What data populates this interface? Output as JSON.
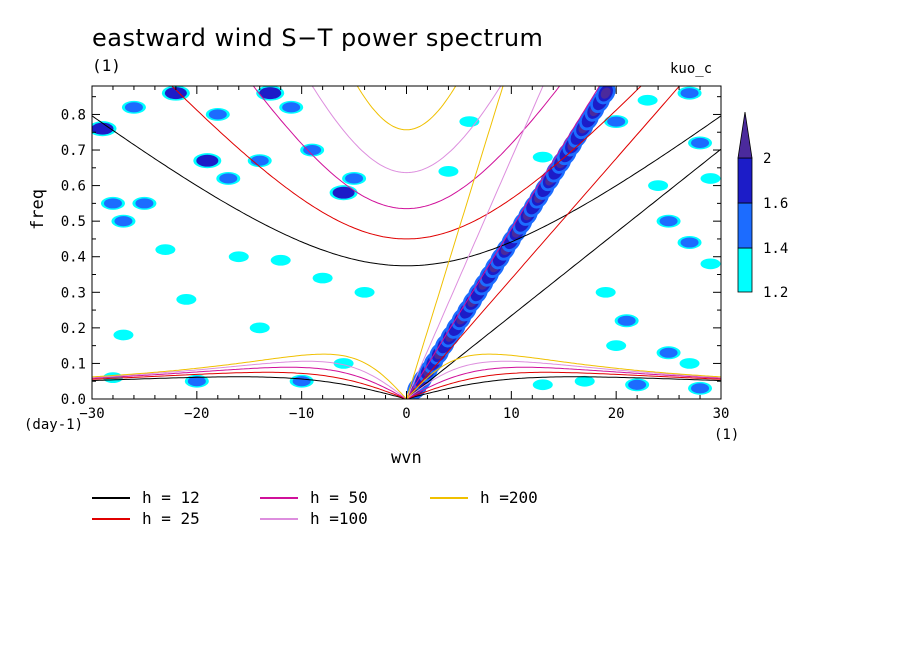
{
  "title": "eastward wind S−T power spectrum",
  "subtitle_left": "(1)",
  "subtitle_right": "kuo_c",
  "chart_data": {
    "type": "heatmap",
    "xlabel": "wvn",
    "ylabel": "freq",
    "x_unit": "(1)",
    "y_unit": "(day-1)",
    "xlim": [
      -30,
      30
    ],
    "ylim": [
      0,
      0.88
    ],
    "xticks": [
      -30,
      -20,
      -10,
      0,
      10,
      20,
      30
    ],
    "yticks": [
      0.0,
      0.1,
      0.2,
      0.3,
      0.4,
      0.5,
      0.6,
      0.7,
      0.8
    ],
    "xtick_labels": [
      "−30",
      "−20",
      "−10",
      "0",
      "10",
      "20",
      "30"
    ],
    "ytick_labels": [
      "0.0",
      "0.1",
      "0.2",
      "0.3",
      "0.4",
      "0.5",
      "0.6",
      "0.7",
      "0.8"
    ],
    "colorbar": {
      "levels": [
        1.2,
        1.4,
        1.6,
        2
      ],
      "labels": [
        "1.2",
        "1.4",
        "1.6",
        "2"
      ],
      "colors": [
        "#00ffff",
        "#1c6cff",
        "#1c1cc8",
        "#4b2a9c"
      ]
    },
    "dispersion_curves": [
      {
        "name": "h = 12",
        "h": 12,
        "color": "#000000"
      },
      {
        "name": "h = 25",
        "h": 25,
        "color": "#e00000"
      },
      {
        "name": "h = 50",
        "h": 50,
        "color": "#d0109a"
      },
      {
        "name": "h =100",
        "h": 100,
        "color": "#dd8ede"
      },
      {
        "name": "h =200",
        "h": 200,
        "color": "#f0c000"
      }
    ],
    "kelvin_band": {
      "k_start": 1,
      "k_end": 19,
      "freq_start": 0.03,
      "freq_end": 0.86
    },
    "patches": [
      {
        "k": -29,
        "f": 0.76,
        "v": 1.6
      },
      {
        "k": -26,
        "f": 0.82,
        "v": 1.4
      },
      {
        "k": -22,
        "f": 0.86,
        "v": 1.6
      },
      {
        "k": -18,
        "f": 0.8,
        "v": 1.4
      },
      {
        "k": -19,
        "f": 0.67,
        "v": 1.6
      },
      {
        "k": -17,
        "f": 0.62,
        "v": 1.4
      },
      {
        "k": -13,
        "f": 0.86,
        "v": 1.6
      },
      {
        "k": -11,
        "f": 0.82,
        "v": 1.4
      },
      {
        "k": -14,
        "f": 0.67,
        "v": 1.4
      },
      {
        "k": -9,
        "f": 0.7,
        "v": 1.4
      },
      {
        "k": -6,
        "f": 0.58,
        "v": 1.6
      },
      {
        "k": -5,
        "f": 0.62,
        "v": 1.4
      },
      {
        "k": -28,
        "f": 0.55,
        "v": 1.4
      },
      {
        "k": -27,
        "f": 0.5,
        "v": 1.4
      },
      {
        "k": -25,
        "f": 0.55,
        "v": 1.4
      },
      {
        "k": -23,
        "f": 0.42,
        "v": 1.2
      },
      {
        "k": -21,
        "f": 0.28,
        "v": 1.2
      },
      {
        "k": -16,
        "f": 0.4,
        "v": 1.2
      },
      {
        "k": -12,
        "f": 0.39,
        "v": 1.2
      },
      {
        "k": -8,
        "f": 0.34,
        "v": 1.2
      },
      {
        "k": -4,
        "f": 0.3,
        "v": 1.2
      },
      {
        "k": -27,
        "f": 0.18,
        "v": 1.2
      },
      {
        "k": -14,
        "f": 0.2,
        "v": 1.2
      },
      {
        "k": -10,
        "f": 0.05,
        "v": 1.4
      },
      {
        "k": -20,
        "f": 0.05,
        "v": 1.4
      },
      {
        "k": -28,
        "f": 0.06,
        "v": 1.2
      },
      {
        "k": -6,
        "f": 0.1,
        "v": 1.2
      },
      {
        "k": 4,
        "f": 0.64,
        "v": 1.2
      },
      {
        "k": 6,
        "f": 0.78,
        "v": 1.2
      },
      {
        "k": 13,
        "f": 0.68,
        "v": 1.2
      },
      {
        "k": 20,
        "f": 0.78,
        "v": 1.4
      },
      {
        "k": 23,
        "f": 0.84,
        "v": 1.2
      },
      {
        "k": 27,
        "f": 0.86,
        "v": 1.4
      },
      {
        "k": 25,
        "f": 0.5,
        "v": 1.4
      },
      {
        "k": 27,
        "f": 0.44,
        "v": 1.4
      },
      {
        "k": 29,
        "f": 0.38,
        "v": 1.2
      },
      {
        "k": 21,
        "f": 0.22,
        "v": 1.4
      },
      {
        "k": 25,
        "f": 0.13,
        "v": 1.4
      },
      {
        "k": 27,
        "f": 0.1,
        "v": 1.2
      },
      {
        "k": 22,
        "f": 0.04,
        "v": 1.4
      },
      {
        "k": 28,
        "f": 0.03,
        "v": 1.4
      },
      {
        "k": 19,
        "f": 0.3,
        "v": 1.2
      },
      {
        "k": 17,
        "f": 0.05,
        "v": 1.2
      },
      {
        "k": 13,
        "f": 0.04,
        "v": 1.2
      },
      {
        "k": 24,
        "f": 0.6,
        "v": 1.2
      },
      {
        "k": 29,
        "f": 0.62,
        "v": 1.2
      },
      {
        "k": 28,
        "f": 0.72,
        "v": 1.4
      },
      {
        "k": 20,
        "f": 0.15,
        "v": 1.2
      }
    ]
  }
}
